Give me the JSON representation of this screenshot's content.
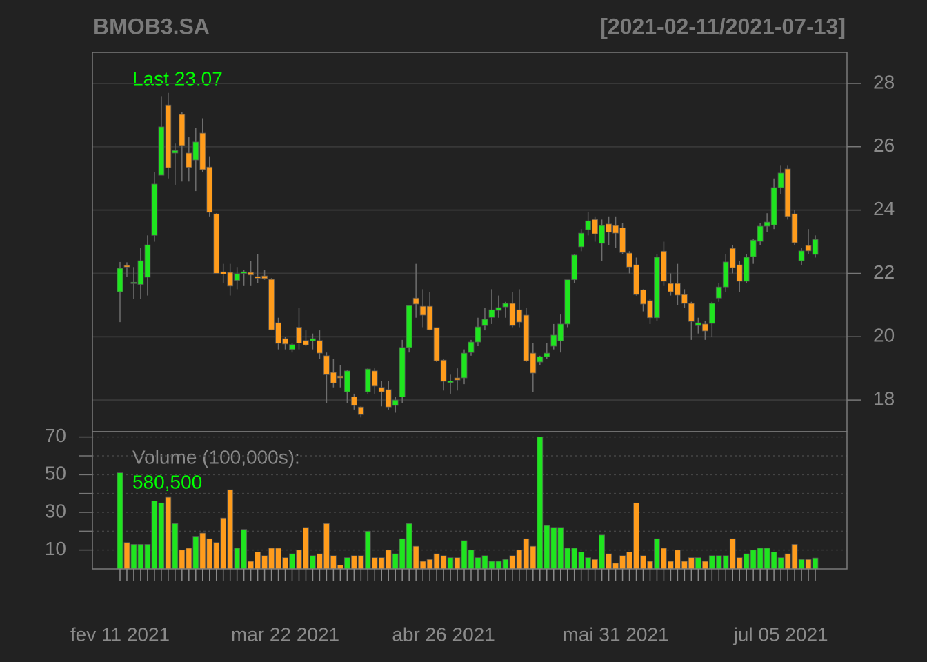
{
  "chart_data": [
    {
      "type": "candlestick",
      "title": "BMOB3.SA",
      "subtitle": "[2021-02-11/2021-07-13]",
      "annotation": "Last 23.07",
      "up_color": "#1fe51f",
      "down_color": "#ff9c1c",
      "wick_color": "#6e6e6e",
      "grid": true,
      "categories": [
        "fev 11 2021",
        null,
        null,
        null,
        null,
        null,
        null,
        null,
        null,
        null,
        null,
        null,
        null,
        null,
        null,
        null,
        null,
        null,
        null,
        null,
        null,
        null,
        null,
        null,
        "mar 22 2021",
        null,
        null,
        null,
        null,
        null,
        null,
        null,
        null,
        null,
        null,
        null,
        null,
        null,
        null,
        null,
        null,
        null,
        null,
        null,
        null,
        null,
        null,
        "abr 26 2021",
        null,
        null,
        null,
        null,
        null,
        null,
        null,
        null,
        null,
        null,
        null,
        null,
        null,
        null,
        null,
        null,
        null,
        null,
        null,
        null,
        null,
        null,
        null,
        null,
        "mai 31 2021",
        null,
        null,
        null,
        null,
        null,
        null,
        null,
        null,
        null,
        null,
        null,
        null,
        null,
        null,
        null,
        null,
        null,
        null,
        null,
        null,
        null,
        null,
        null,
        "jul 05 2021",
        null,
        null,
        null,
        null,
        null
      ],
      "open": [
        21.42,
        22.25,
        21.68,
        21.65,
        21.88,
        23.2,
        25.1,
        27.32,
        25.8,
        27.02,
        25.8,
        25.58,
        26.43,
        25.36,
        23.88,
        22.05,
        22.03,
        21.78,
        22.0,
        22.03,
        21.9,
        21.92,
        21.81,
        20.44,
        19.94,
        19.6,
        20.3,
        19.88,
        19.87,
        19.88,
        19.4,
        18.87,
        18.76,
        18.26,
        18.1,
        17.78,
        18.26,
        18.92,
        18.4,
        18.33,
        17.83,
        18.1,
        19.66,
        21.22,
        20.96,
        20.96,
        20.29,
        19.26,
        18.55,
        18.7,
        18.7,
        19.5,
        19.83,
        20.35,
        20.61,
        20.83,
        20.94,
        21.05,
        20.85,
        20.68,
        19.48,
        19.2,
        19.37,
        19.7,
        19.87,
        20.4,
        21.8,
        22.84,
        23.38,
        23.7,
        22.95,
        23.56,
        23.51,
        23.44,
        22.64,
        22.27,
        21.48,
        21.14,
        20.6,
        22.7,
        21.68,
        21.68,
        21.33,
        21.05,
        20.35,
        20.4,
        20.42,
        21.22,
        21.57,
        22.79,
        22.27,
        21.75,
        22.53,
        23.01,
        23.49,
        23.53,
        24.71,
        25.3,
        23.88,
        22.4,
        22.88,
        22.6
      ],
      "high": [
        22.36,
        22.35,
        22.2,
        22.8,
        23.2,
        25.2,
        27.6,
        27.7,
        26.1,
        27.1,
        26.3,
        26.6,
        26.9,
        25.7,
        23.9,
        22.3,
        22.3,
        22.2,
        22.1,
        22.4,
        22.6,
        22.1,
        21.85,
        20.6,
        20.0,
        19.8,
        20.9,
        20.2,
        20.1,
        20.2,
        19.5,
        19.3,
        19.1,
        18.95,
        18.2,
        17.8,
        19.0,
        19.0,
        18.6,
        18.6,
        18.1,
        19.9,
        21.0,
        22.3,
        21.5,
        21.4,
        20.3,
        19.3,
        18.8,
        19.0,
        19.6,
        19.9,
        20.6,
        20.9,
        21.5,
        21.3,
        21.1,
        21.4,
        21.5,
        20.9,
        19.8,
        19.4,
        19.8,
        20.4,
        20.7,
        21.8,
        22.6,
        23.4,
        23.95,
        23.8,
        23.7,
        23.8,
        23.8,
        23.6,
        22.7,
        22.5,
        21.5,
        21.2,
        22.6,
        23.0,
        22.0,
        22.3,
        21.5,
        21.1,
        20.6,
        20.5,
        21.1,
        21.7,
        22.6,
        22.9,
        22.4,
        22.6,
        23.1,
        23.6,
        23.9,
        25.0,
        25.4,
        25.4,
        24.0,
        22.8,
        23.4,
        23.2
      ],
      "low": [
        20.46,
        21.9,
        21.2,
        21.2,
        21.3,
        23.0,
        25.1,
        25.0,
        24.8,
        24.9,
        24.9,
        24.6,
        25.2,
        23.8,
        22.0,
        21.7,
        21.3,
        21.5,
        21.6,
        21.6,
        21.7,
        21.8,
        20.2,
        19.6,
        19.6,
        19.5,
        19.6,
        19.7,
        19.6,
        19.3,
        17.9,
        18.4,
        18.4,
        17.9,
        17.7,
        17.45,
        18.2,
        18.2,
        17.8,
        17.7,
        17.6,
        17.9,
        19.5,
        20.6,
        20.3,
        20.2,
        19.2,
        18.3,
        18.2,
        18.3,
        18.5,
        19.4,
        19.7,
        20.2,
        20.4,
        20.6,
        20.6,
        20.3,
        20.3,
        19.2,
        18.25,
        19.1,
        19.3,
        19.6,
        19.5,
        20.3,
        21.7,
        22.7,
        23.2,
        23.0,
        22.4,
        22.9,
        22.8,
        22.6,
        22.0,
        21.3,
        20.8,
        20.4,
        20.5,
        21.6,
        21.3,
        21.0,
        20.9,
        19.9,
        20.1,
        19.9,
        20.0,
        21.1,
        21.4,
        22.0,
        21.4,
        21.7,
        22.3,
        22.9,
        23.3,
        23.4,
        24.5,
        23.7,
        22.9,
        22.25,
        22.6,
        22.5
      ],
      "close": [
        22.16,
        22.2,
        21.72,
        22.4,
        22.9,
        24.82,
        26.63,
        25.34,
        25.88,
        26.04,
        25.35,
        26.15,
        25.28,
        23.93,
        22.0,
        21.98,
        21.6,
        21.99,
        22.05,
        21.95,
        21.85,
        21.84,
        20.22,
        19.79,
        19.77,
        19.75,
        19.8,
        19.74,
        19.94,
        19.48,
        18.8,
        18.54,
        18.7,
        18.92,
        17.83,
        17.54,
        18.98,
        18.44,
        18.26,
        17.78,
        18.0,
        19.66,
        20.98,
        21.03,
        20.68,
        20.22,
        19.24,
        18.59,
        18.6,
        18.63,
        19.48,
        19.83,
        20.31,
        20.55,
        20.85,
        20.92,
        21.05,
        20.35,
        20.46,
        19.24,
        18.85,
        19.37,
        19.48,
        20.05,
        20.4,
        21.8,
        22.58,
        23.27,
        23.66,
        23.25,
        23.51,
        23.3,
        23.27,
        22.66,
        22.2,
        21.33,
        21.03,
        20.6,
        22.51,
        21.75,
        21.42,
        21.31,
        21.05,
        20.48,
        20.44,
        20.18,
        21.05,
        21.57,
        22.36,
        22.18,
        21.75,
        22.51,
        23.05,
        23.49,
        23.62,
        24.71,
        25.17,
        23.8,
        22.97,
        22.71,
        22.71,
        23.07
      ],
      "ylim": [
        17.0,
        28.98
      ],
      "yticks": [
        18,
        20,
        22,
        24,
        26,
        28
      ]
    },
    {
      "type": "volume",
      "annotation": "Volume (100,000s):",
      "annotation_value": "580,500",
      "grid": true,
      "values": [
        51,
        14,
        13,
        13,
        13,
        36,
        35,
        38,
        24,
        10,
        11,
        17,
        19,
        16,
        14,
        27,
        42,
        11,
        21,
        4,
        9,
        7,
        11,
        11,
        6,
        8,
        10,
        22,
        7,
        8,
        24,
        7,
        2,
        6,
        7,
        7,
        20,
        6,
        6,
        10,
        8,
        16,
        24,
        12,
        4,
        5,
        8,
        7,
        6,
        6,
        15,
        10,
        6,
        7,
        4,
        4,
        5,
        7,
        10,
        16,
        12,
        70,
        23,
        22,
        22,
        11,
        11,
        9,
        6,
        5,
        18,
        8,
        3,
        7,
        9,
        35,
        7,
        4,
        16,
        11,
        4,
        10,
        4,
        6,
        6,
        4,
        7,
        7,
        7,
        16,
        6,
        8,
        10,
        11,
        11,
        9,
        6,
        8,
        13,
        5,
        5,
        5.805
      ],
      "ylim": [
        0,
        72.8
      ],
      "yticks": [
        10,
        30,
        50,
        70
      ],
      "minor_yticks": [
        20,
        40,
        60
      ]
    }
  ]
}
